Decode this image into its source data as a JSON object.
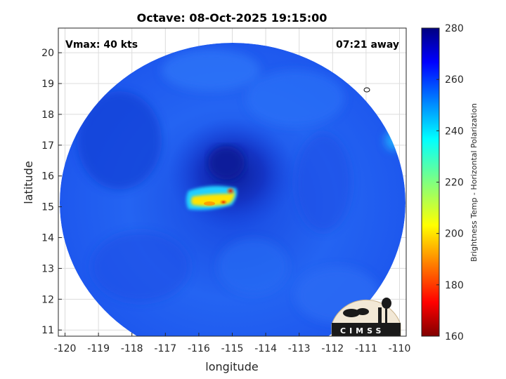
{
  "title": "Octave: 08-Oct-2025 19:15:00",
  "annotations": {
    "vmax": "Vmax: 40 kts",
    "eta": "07:21 away"
  },
  "axes": {
    "xlabel": "longitude",
    "ylabel": "latitude",
    "xlim": [
      -120.2,
      -109.8
    ],
    "ylim": [
      10.8,
      20.8
    ],
    "xticks": [
      "-120",
      "-119",
      "-118",
      "-117",
      "-116",
      "-115",
      "-114",
      "-113",
      "-112",
      "-111",
      "-110"
    ],
    "yticks": [
      "11",
      "12",
      "13",
      "14",
      "15",
      "16",
      "17",
      "18",
      "19",
      "20"
    ],
    "grid": true
  },
  "colorbar": {
    "label": "Brightness Temp - Horizontal Polarization",
    "ticks": [
      "160",
      "180",
      "200",
      "220",
      "240",
      "260",
      "280"
    ],
    "range": [
      160,
      280
    ],
    "colormap": "jet"
  },
  "logo": {
    "text": "CIMSS"
  },
  "colors": {
    "background_field": "#1f5cf0",
    "core_cold": "#0a1a9a",
    "convection_warm": "#ffd400",
    "convection_hot": "#e61a00"
  }
}
